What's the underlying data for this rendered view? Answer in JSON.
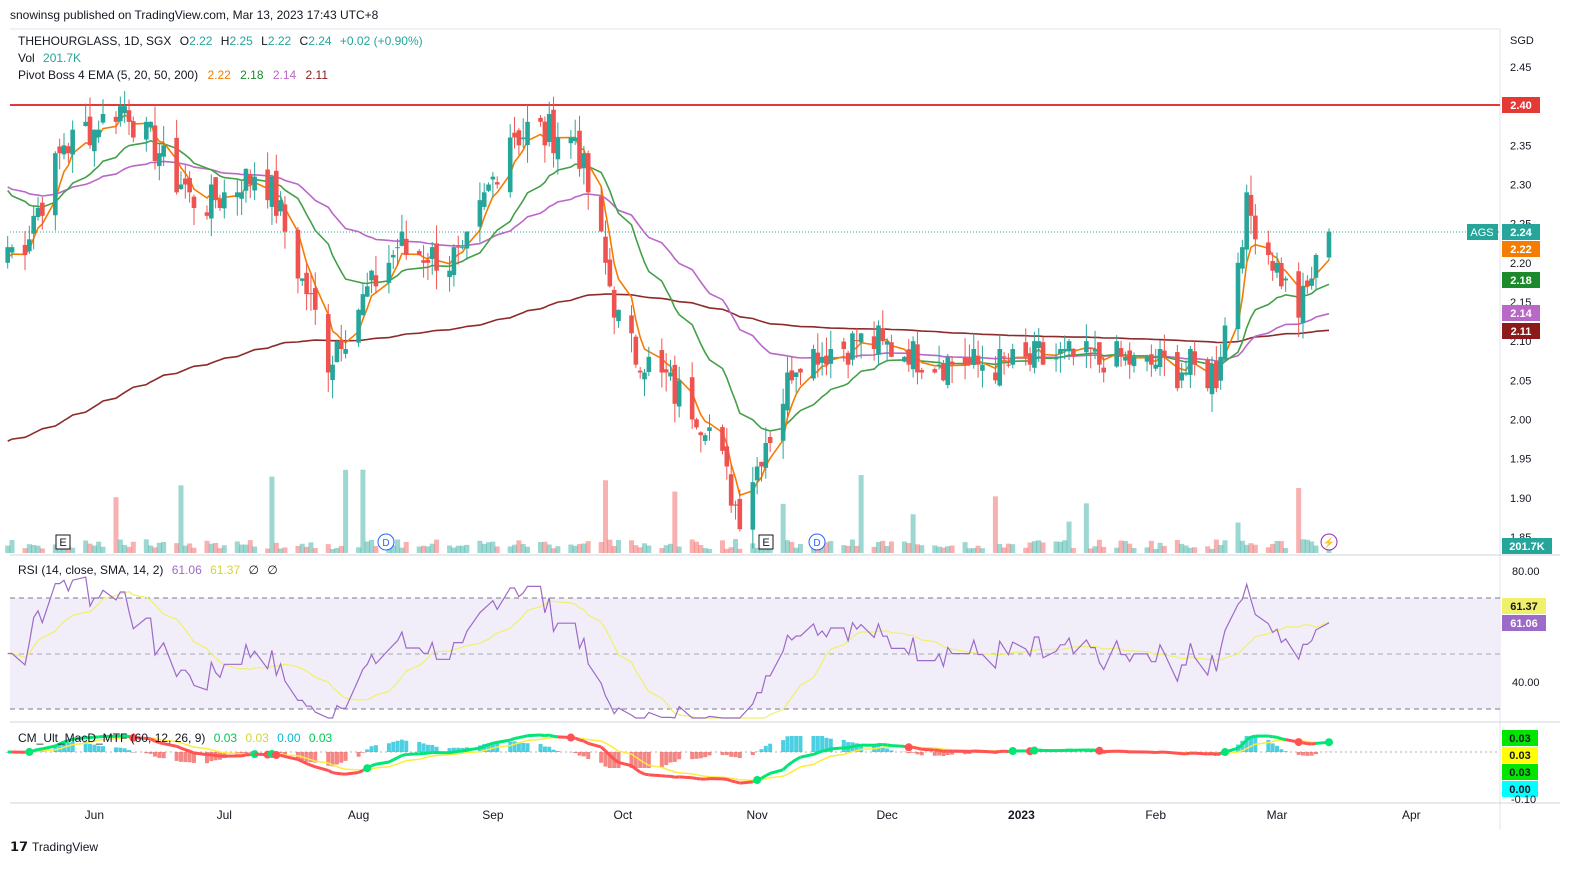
{
  "header": {
    "published": "snowinsg published on TradingView.com, Mar 13, 2023 17:43 UTC+8"
  },
  "footer": {
    "brand": "TradingView"
  },
  "colors": {
    "up": "#26a69a",
    "down": "#ef5350",
    "ema5": "#f57c00",
    "ema20": "#43a047",
    "ema50": "#ba68c8",
    "ema200": "#8d2a2a",
    "resistance": "#e53935",
    "rsi": "#9c6ac9",
    "rsi_sma": "#f0f06a",
    "macd_up": "#00e676",
    "macd_down": "#ff5252"
  },
  "legend": {
    "symbol": "THEHOURGLASS, 1D, SGX",
    "open_label": "O",
    "open": "2.22",
    "high_label": "H",
    "high": "2.25",
    "low_label": "L",
    "low": "2.22",
    "close_label": "C",
    "close": "2.24",
    "change": "+0.02 (+0.90%)",
    "vol_label": "Vol",
    "vol": "201.7K",
    "ema_label": "Pivot Boss 4 EMA (5, 20, 50, 200)",
    "ema_values": [
      "2.22",
      "2.18",
      "2.14",
      "2.11"
    ]
  },
  "price_axis": {
    "currency": "SGD",
    "ticks": [
      "2.45",
      "2.40",
      "2.35",
      "2.30",
      "2.25",
      "2.20",
      "2.15",
      "2.10",
      "2.05",
      "2.00",
      "1.95",
      "1.90",
      "1.85"
    ],
    "badges": {
      "resistance": "2.40",
      "symbol_tag": "AGS",
      "last": "2.24",
      "ema5": "2.22",
      "ema20": "2.18",
      "ema50": "2.14",
      "ema200": "2.11",
      "volume": "201.7K"
    }
  },
  "time_axis": [
    "Jun",
    "Jul",
    "Aug",
    "Sep",
    "Oct",
    "Nov",
    "Dec",
    "2023",
    "Feb",
    "Mar",
    "Apr"
  ],
  "events": [
    {
      "label": "E",
      "month": "May"
    },
    {
      "label": "D",
      "month": "Aug"
    },
    {
      "label": "E",
      "month": "Oct"
    },
    {
      "label": "D",
      "month": "Nov"
    },
    {
      "label": "⚡",
      "month": "Mar"
    }
  ],
  "rsi_panel": {
    "label": "RSI (14, close, SMA, 14, 2)",
    "values": [
      "61.06",
      "61.37",
      "∅",
      "∅"
    ],
    "ticks": [
      "80.00",
      "40.00"
    ],
    "badges": [
      "61.37",
      "61.06"
    ]
  },
  "macd_panel": {
    "label": "CM_Ult_MacD_MTF (60, 12, 26, 9)",
    "values": [
      "0.03",
      "0.03",
      "0.00",
      "0.03"
    ],
    "badges": [
      "0.03",
      "0.03",
      "0.03",
      "0.00"
    ],
    "tick_partial": "-0.10"
  },
  "chart_data": {
    "type": "candlestick",
    "symbol": "THEHOURGLASS",
    "interval": "1D",
    "exchange": "SGX",
    "currency": "SGD",
    "ylim": [
      1.85,
      2.47
    ],
    "resistance": 2.4,
    "last": {
      "open": 2.22,
      "high": 2.25,
      "low": 2.22,
      "close": 2.24,
      "volume": "201.7K"
    },
    "approx_closes": [
      {
        "date": "2022-05-15",
        "close": 2.22
      },
      {
        "date": "2022-05-25",
        "close": 2.35
      },
      {
        "date": "2022-06-08",
        "close": 2.4
      },
      {
        "date": "2022-06-25",
        "close": 2.27
      },
      {
        "date": "2022-07-10",
        "close": 2.32
      },
      {
        "date": "2022-07-25",
        "close": 2.08
      },
      {
        "date": "2022-08-10",
        "close": 2.22
      },
      {
        "date": "2022-08-25",
        "close": 2.2
      },
      {
        "date": "2022-09-05",
        "close": 2.37
      },
      {
        "date": "2022-09-20",
        "close": 2.36
      },
      {
        "date": "2022-10-01",
        "close": 2.1
      },
      {
        "date": "2022-10-20",
        "close": 2.0
      },
      {
        "date": "2022-10-28",
        "close": 1.88
      },
      {
        "date": "2022-11-10",
        "close": 2.08
      },
      {
        "date": "2022-11-25",
        "close": 2.1
      },
      {
        "date": "2022-12-20",
        "close": 2.07
      },
      {
        "date": "2023-01-15",
        "close": 2.08
      },
      {
        "date": "2023-02-15",
        "close": 2.06
      },
      {
        "date": "2023-02-22",
        "close": 2.27
      },
      {
        "date": "2023-03-06",
        "close": 2.14
      },
      {
        "date": "2023-03-13",
        "close": 2.24
      }
    ],
    "series": [
      {
        "name": "EMA 5",
        "last": 2.22
      },
      {
        "name": "EMA 20",
        "last": 2.18
      },
      {
        "name": "EMA 50",
        "last": 2.14
      },
      {
        "name": "EMA 200",
        "last": 2.11
      }
    ],
    "rsi": {
      "last": 61.06,
      "sma_last": 61.37,
      "ylim": [
        30,
        85
      ],
      "bands": [
        70,
        30
      ]
    },
    "macd": {
      "last": 0.03,
      "signal": 0.03,
      "hist": 0.0
    }
  }
}
